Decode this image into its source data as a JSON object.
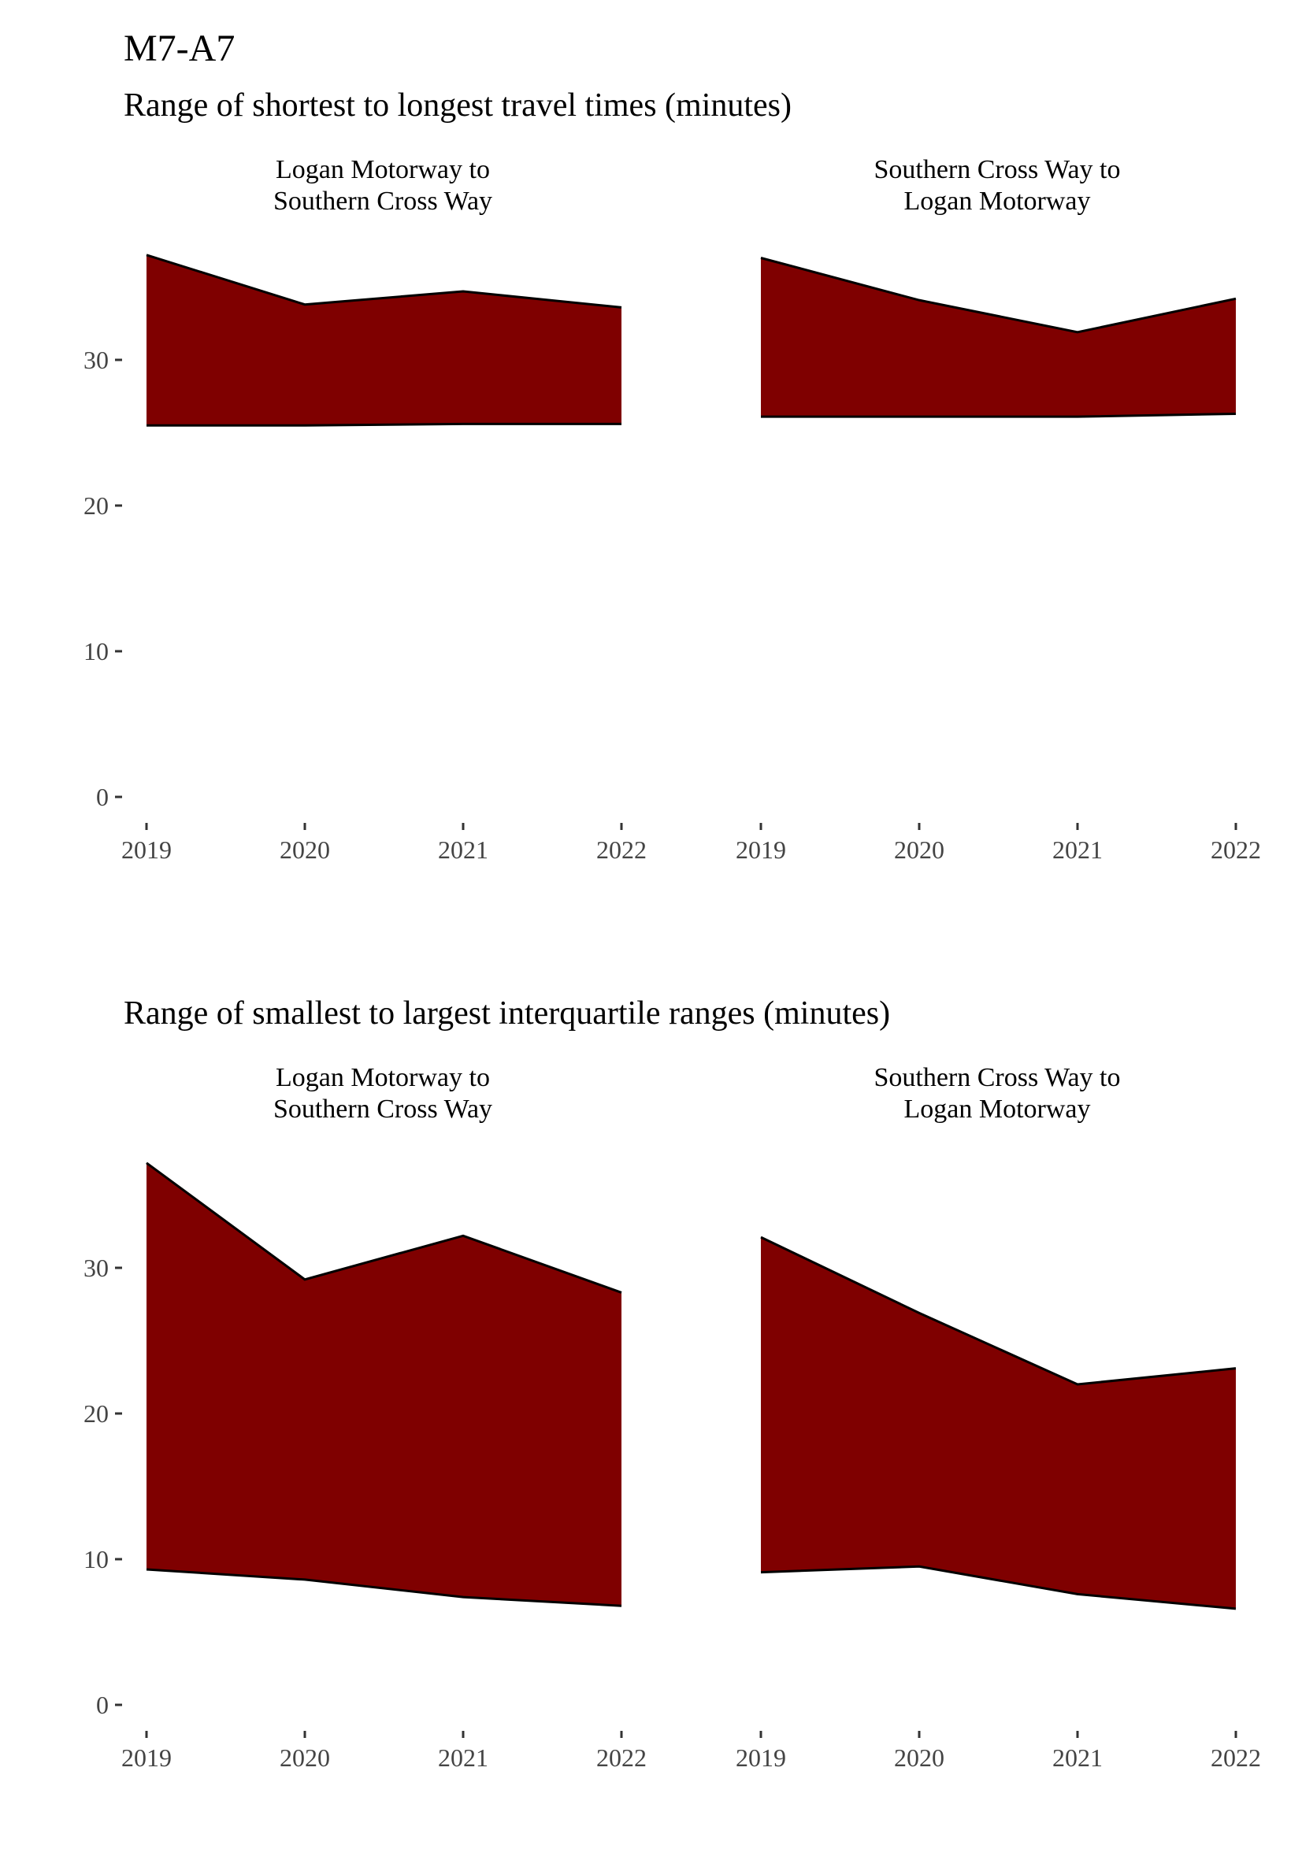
{
  "title": "M7-A7",
  "colors": {
    "area_fill": "#7f0000",
    "area_outline": "#000000",
    "tick_text": "#444444"
  },
  "chart_data": [
    {
      "type": "area",
      "subtitle": "Range of shortest to longest travel times (minutes)",
      "x": [
        2019,
        2020,
        2021,
        2022
      ],
      "x_ticks": [
        "2019",
        "2020",
        "2021",
        "2022"
      ],
      "y_ticks": [
        "0",
        "10",
        "20",
        "30"
      ],
      "ylim": [
        0,
        37.5
      ],
      "grid": false,
      "facets": [
        {
          "label_line1": "Logan Motorway to",
          "label_line2": "Southern Cross Way",
          "lower": [
            25.5,
            25.5,
            25.6,
            25.6
          ],
          "upper": [
            37.2,
            33.8,
            34.7,
            33.6
          ]
        },
        {
          "label_line1": "Southern Cross Way to",
          "label_line2": "Logan Motorway",
          "lower": [
            26.1,
            26.1,
            26.1,
            26.3
          ],
          "upper": [
            37.0,
            34.1,
            31.9,
            34.2
          ]
        }
      ]
    },
    {
      "type": "area",
      "subtitle": "Range of smallest to largest interquartile ranges (minutes)",
      "x": [
        2019,
        2020,
        2021,
        2022
      ],
      "x_ticks": [
        "2019",
        "2020",
        "2021",
        "2022"
      ],
      "y_ticks": [
        "0",
        "10",
        "20",
        "30"
      ],
      "ylim": [
        0,
        37.5
      ],
      "grid": false,
      "facets": [
        {
          "label_line1": "Logan Motorway to",
          "label_line2": "Southern Cross Way",
          "lower": [
            9.3,
            8.6,
            7.4,
            6.8
          ],
          "upper": [
            37.2,
            29.2,
            32.2,
            28.3
          ]
        },
        {
          "label_line1": "Southern Cross Way to",
          "label_line2": "Logan Motorway",
          "lower": [
            9.1,
            9.5,
            7.6,
            6.6
          ],
          "upper": [
            32.1,
            26.9,
            22.0,
            23.1
          ]
        }
      ]
    }
  ]
}
